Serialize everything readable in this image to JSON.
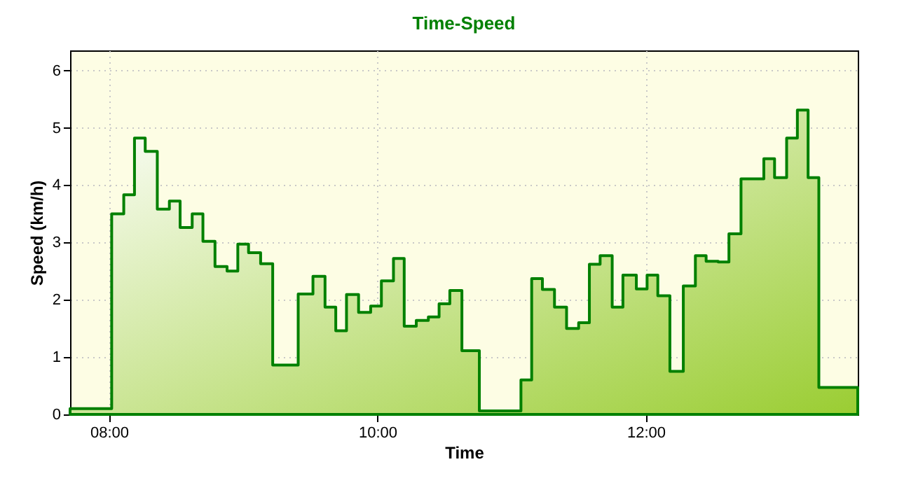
{
  "chart_data": {
    "type": "area",
    "title": "Time-Speed",
    "xlabel": "Time",
    "ylabel": "Speed (km/h)",
    "x": [
      7.71,
      8.02,
      8.11,
      8.19,
      8.27,
      8.36,
      8.45,
      8.53,
      8.62,
      8.7,
      8.79,
      8.88,
      8.96,
      9.04,
      9.13,
      9.22,
      9.41,
      9.52,
      9.61,
      9.69,
      9.77,
      9.86,
      9.95,
      10.03,
      10.12,
      10.2,
      10.29,
      10.38,
      10.46,
      10.54,
      10.63,
      10.76,
      11.07,
      11.15,
      11.23,
      11.32,
      11.41,
      11.5,
      11.58,
      11.66,
      11.75,
      11.83,
      11.93,
      12.01,
      12.09,
      12.18,
      12.28,
      12.37,
      12.45,
      12.54,
      12.62,
      12.71,
      12.88,
      12.96,
      13.05,
      13.13,
      13.21,
      13.29,
      13.58
    ],
    "series": [
      {
        "color": "#008000",
        "values": [
          0.1,
          3.5,
          3.83,
          4.82,
          4.59,
          3.58,
          3.72,
          3.26,
          3.5,
          3.02,
          2.58,
          2.5,
          2.97,
          2.82,
          2.63,
          0.86,
          2.1,
          2.41,
          1.87,
          1.46,
          2.09,
          1.78,
          1.89,
          2.33,
          2.72,
          1.54,
          1.64,
          1.7,
          1.93,
          2.16,
          1.11,
          0.06,
          0.6,
          2.37,
          2.18,
          1.87,
          1.5,
          1.6,
          2.62,
          2.77,
          1.87,
          2.43,
          2.19,
          2.43,
          2.07,
          0.75,
          2.24,
          2.77,
          2.67,
          2.66,
          3.15,
          4.11,
          4.46,
          4.13,
          4.82,
          5.31,
          4.13,
          0.47,
          0.47
        ]
      }
    ],
    "xlim": [
      7.71,
      13.58
    ],
    "xticks": [
      {
        "value": 8,
        "label": "08:00"
      },
      {
        "value": 10,
        "label": "10:00"
      },
      {
        "value": 12,
        "label": "12:00"
      }
    ],
    "ylim": [
      0,
      6.35
    ],
    "yticks": [
      0,
      1,
      2,
      3,
      4,
      5,
      6
    ],
    "grid": true
  }
}
